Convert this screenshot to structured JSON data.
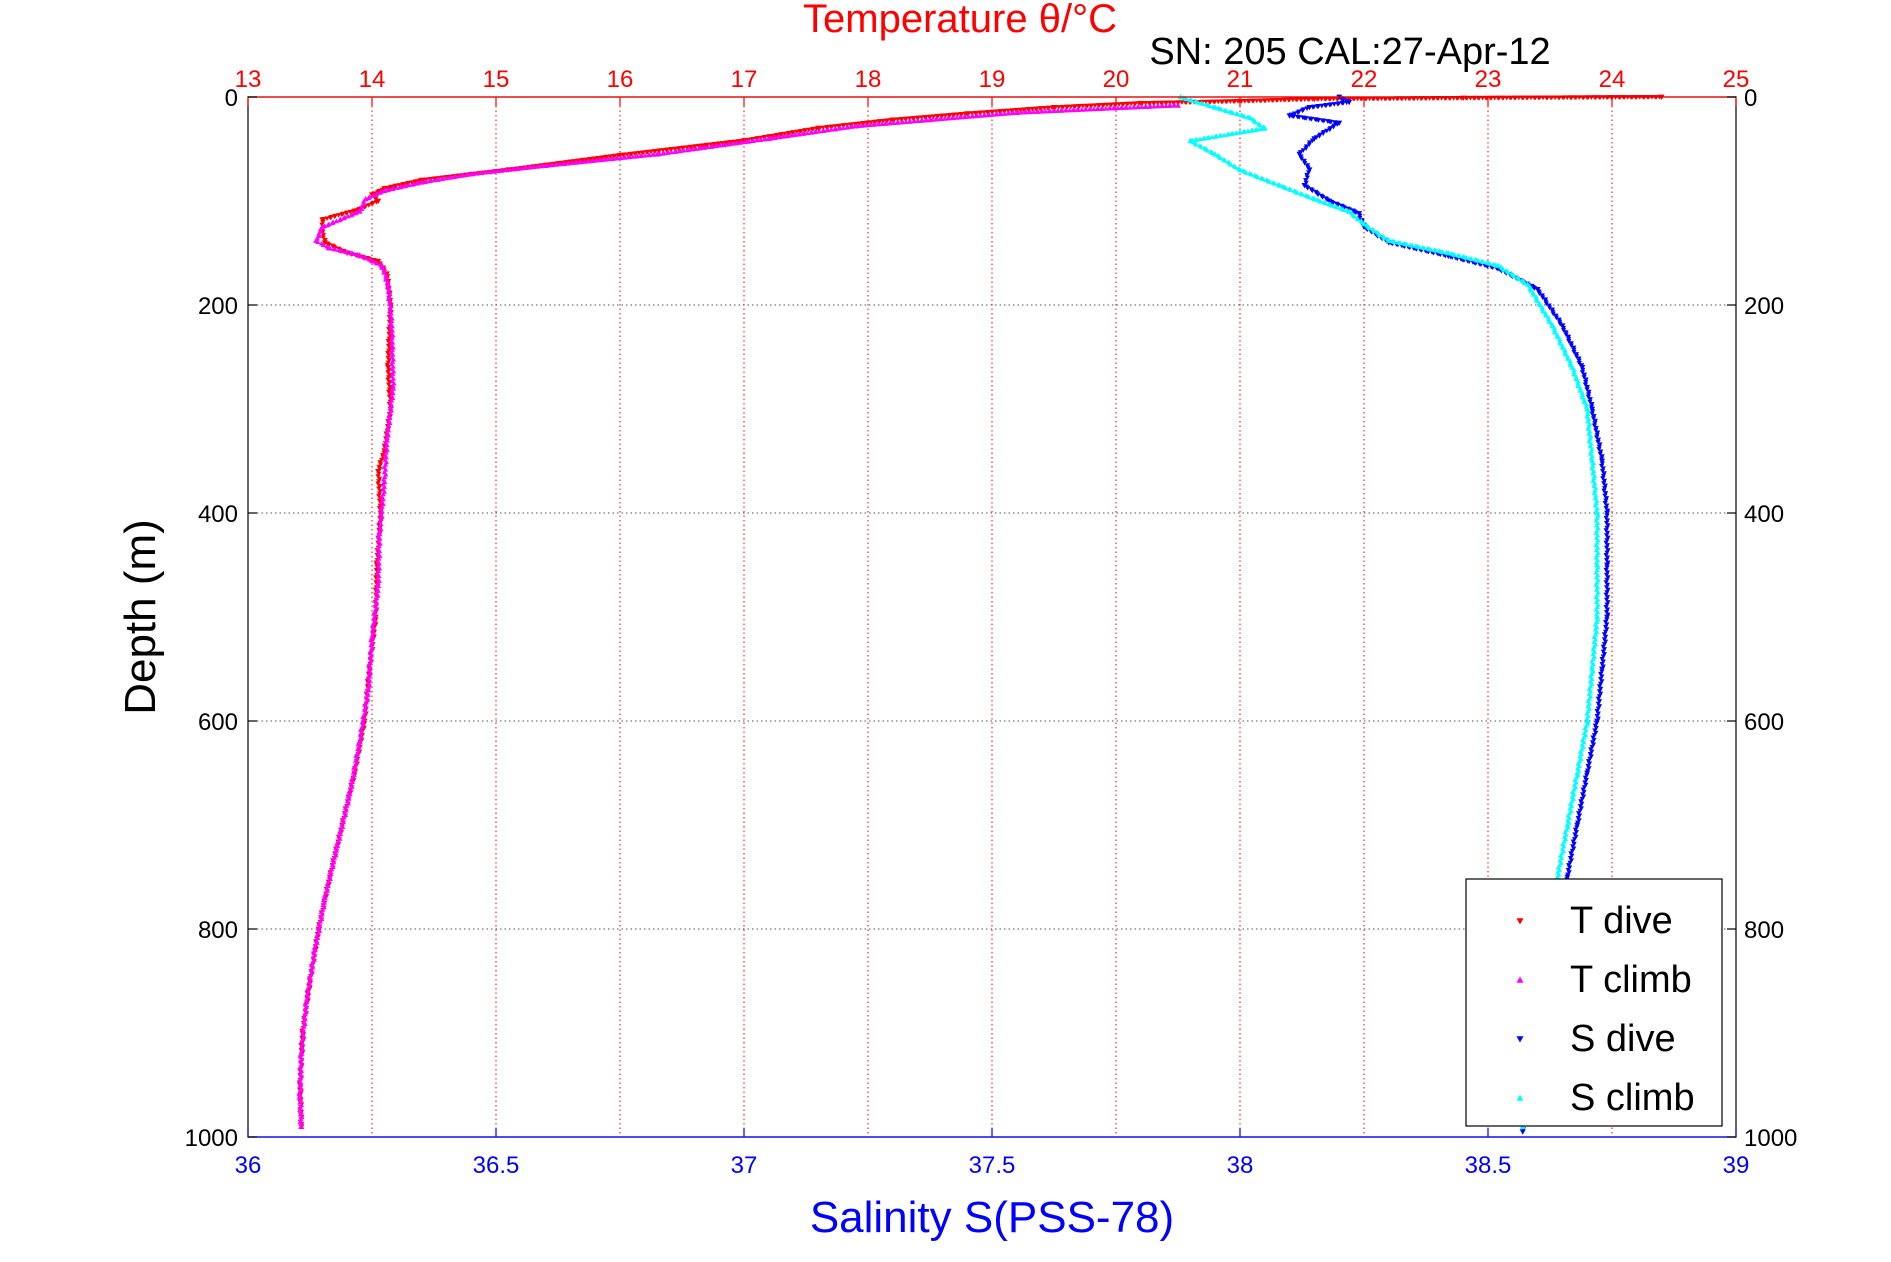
{
  "chart_data": {
    "type": "scatter",
    "title": "Temperature θ/°C",
    "subtitle": "SN: 205  CAL:27-Apr-12",
    "xlabel_bottom": "Salinity S(PSS-78)",
    "xlabel_top": "Temperature θ/°C",
    "ylabel": "Depth (m)",
    "xlim_bottom": [
      36,
      39
    ],
    "xlim_top": [
      13,
      25
    ],
    "ylim": [
      0,
      1000
    ],
    "y_reversed": true,
    "grid": true,
    "legend_position": "bottom-right",
    "xticks_bottom": [
      "36",
      "36.5",
      "37",
      "37.5",
      "38",
      "38.5",
      "39"
    ],
    "xticks_top": [
      "13",
      "14",
      "15",
      "16",
      "17",
      "18",
      "19",
      "20",
      "21",
      "22",
      "23",
      "24",
      "25"
    ],
    "yticks": [
      "0",
      "200",
      "400",
      "600",
      "800",
      "1000"
    ],
    "colors": {
      "temperature_axis": "#ff0000",
      "salinity_axis": "#0000ff",
      "T dive": "#ff0000",
      "T climb": "#ff00ff",
      "S dive": "#0000ff",
      "S climb": "#00ffff"
    },
    "series": [
      {
        "name": "T dive",
        "axis": "temperature",
        "marker": "triangle-down",
        "points": [
          [
            24.4,
            0
          ],
          [
            22.8,
            1
          ],
          [
            21.6,
            2
          ],
          [
            21.0,
            4
          ],
          [
            20.2,
            6
          ],
          [
            19.5,
            10
          ],
          [
            18.8,
            16
          ],
          [
            18.2,
            22
          ],
          [
            17.6,
            30
          ],
          [
            17.0,
            42
          ],
          [
            16.0,
            56
          ],
          [
            15.1,
            70
          ],
          [
            14.4,
            80
          ],
          [
            14.1,
            88
          ],
          [
            14.0,
            94
          ],
          [
            14.05,
            100
          ],
          [
            13.9,
            108
          ],
          [
            13.6,
            118
          ],
          [
            13.6,
            130
          ],
          [
            13.62,
            140
          ],
          [
            13.8,
            150
          ],
          [
            14.05,
            158
          ],
          [
            14.12,
            170
          ],
          [
            14.15,
            200
          ],
          [
            14.13,
            260
          ],
          [
            14.15,
            300
          ],
          [
            14.1,
            340
          ],
          [
            14.05,
            360
          ],
          [
            14.07,
            400
          ],
          [
            14.04,
            450
          ],
          [
            14.03,
            500
          ],
          [
            13.98,
            550
          ],
          [
            13.94,
            600
          ],
          [
            13.86,
            650
          ],
          [
            13.76,
            700
          ],
          [
            13.66,
            750
          ],
          [
            13.57,
            800
          ],
          [
            13.5,
            850
          ],
          [
            13.44,
            900
          ],
          [
            13.42,
            950
          ],
          [
            13.43,
            990
          ]
        ]
      },
      {
        "name": "T climb",
        "axis": "temperature",
        "marker": "triangle-up",
        "points": [
          [
            20.5,
            8
          ],
          [
            19.2,
            15
          ],
          [
            18.5,
            22
          ],
          [
            17.9,
            28
          ],
          [
            17.2,
            40
          ],
          [
            16.3,
            55
          ],
          [
            15.4,
            66
          ],
          [
            14.8,
            74
          ],
          [
            14.4,
            82
          ],
          [
            14.1,
            90
          ],
          [
            13.95,
            98
          ],
          [
            13.9,
            110
          ],
          [
            13.6,
            125
          ],
          [
            13.55,
            138
          ],
          [
            13.65,
            145
          ],
          [
            13.9,
            152
          ],
          [
            14.08,
            162
          ],
          [
            14.13,
            180
          ],
          [
            14.16,
            220
          ],
          [
            14.17,
            280
          ],
          [
            14.12,
            330
          ],
          [
            14.1,
            370
          ],
          [
            14.06,
            420
          ],
          [
            14.05,
            470
          ],
          [
            14.0,
            520
          ],
          [
            13.97,
            570
          ],
          [
            13.9,
            620
          ],
          [
            13.82,
            670
          ],
          [
            13.72,
            720
          ],
          [
            13.62,
            770
          ],
          [
            13.54,
            820
          ],
          [
            13.47,
            870
          ],
          [
            13.43,
            920
          ],
          [
            13.42,
            960
          ],
          [
            13.43,
            990
          ]
        ]
      },
      {
        "name": "S dive",
        "axis": "salinity",
        "marker": "triangle-down",
        "points": [
          [
            38.2,
            0
          ],
          [
            38.22,
            5
          ],
          [
            38.14,
            10
          ],
          [
            38.1,
            18
          ],
          [
            38.2,
            25
          ],
          [
            38.15,
            40
          ],
          [
            38.12,
            55
          ],
          [
            38.14,
            70
          ],
          [
            38.13,
            85
          ],
          [
            38.18,
            100
          ],
          [
            38.24,
            112
          ],
          [
            38.25,
            125
          ],
          [
            38.3,
            140
          ],
          [
            38.42,
            153
          ],
          [
            38.52,
            165
          ],
          [
            38.6,
            185
          ],
          [
            38.65,
            220
          ],
          [
            38.69,
            260
          ],
          [
            38.71,
            300
          ],
          [
            38.73,
            350
          ],
          [
            38.74,
            400
          ],
          [
            38.74,
            450
          ],
          [
            38.74,
            500
          ],
          [
            38.73,
            550
          ],
          [
            38.72,
            600
          ],
          [
            38.7,
            650
          ],
          [
            38.68,
            700
          ],
          [
            38.66,
            750
          ],
          [
            38.64,
            800
          ],
          [
            38.62,
            850
          ],
          [
            38.6,
            900
          ],
          [
            38.58,
            950
          ],
          [
            38.57,
            995
          ]
        ]
      },
      {
        "name": "S climb",
        "axis": "salinity",
        "marker": "triangle-up",
        "points": [
          [
            37.88,
            0
          ],
          [
            37.95,
            10
          ],
          [
            38.02,
            20
          ],
          [
            38.05,
            30
          ],
          [
            37.9,
            42
          ],
          [
            37.95,
            55
          ],
          [
            38.0,
            70
          ],
          [
            38.08,
            85
          ],
          [
            38.15,
            98
          ],
          [
            38.22,
            110
          ],
          [
            38.25,
            122
          ],
          [
            38.3,
            138
          ],
          [
            38.42,
            150
          ],
          [
            38.52,
            162
          ],
          [
            38.58,
            180
          ],
          [
            38.63,
            220
          ],
          [
            38.67,
            260
          ],
          [
            38.7,
            300
          ],
          [
            38.71,
            350
          ],
          [
            38.72,
            400
          ],
          [
            38.72,
            450
          ],
          [
            38.72,
            500
          ],
          [
            38.71,
            550
          ],
          [
            38.7,
            600
          ],
          [
            38.68,
            650
          ],
          [
            38.66,
            700
          ],
          [
            38.64,
            750
          ],
          [
            38.62,
            800
          ],
          [
            38.6,
            850
          ],
          [
            38.59,
            900
          ],
          [
            38.58,
            950
          ],
          [
            38.57,
            990
          ]
        ]
      }
    ]
  }
}
